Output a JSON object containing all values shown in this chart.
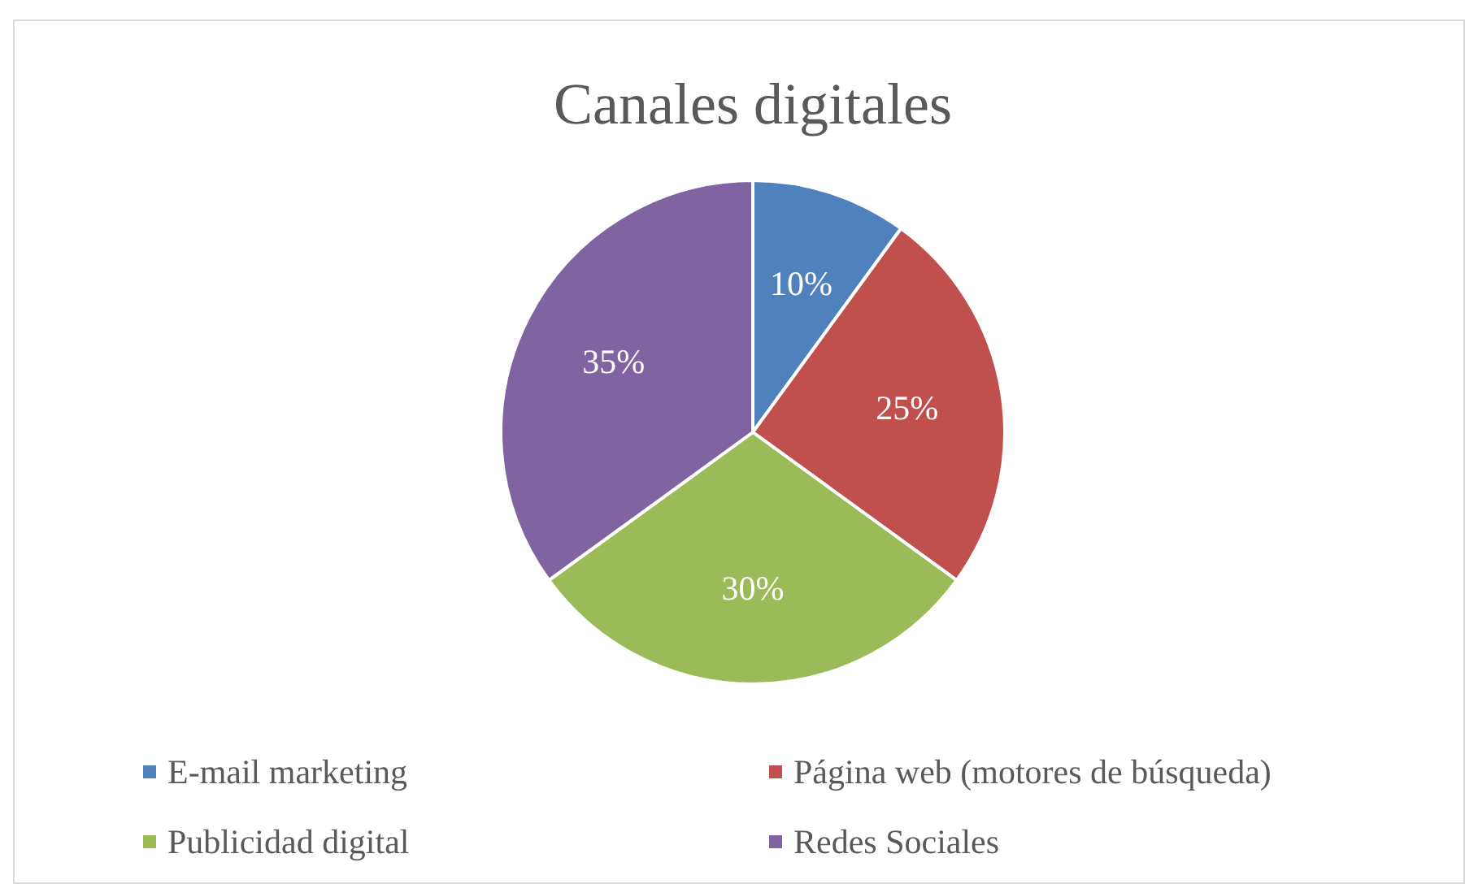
{
  "chart_data": {
    "type": "pie",
    "title": "Canales digitales",
    "categories": [
      "E-mail marketing",
      "Página web (motores de búsqueda)",
      "Publicidad digital",
      "Redes Sociales"
    ],
    "values": [
      10,
      25,
      30,
      35
    ],
    "colors": [
      "#4f81bd",
      "#c0504d",
      "#9bbb59",
      "#8064a2"
    ],
    "value_labels": [
      "10%",
      "25%",
      "30%",
      "35%"
    ],
    "legend": "bottom"
  }
}
